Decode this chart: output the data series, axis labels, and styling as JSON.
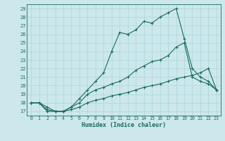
{
  "xlabel": "Humidex (Indice chaleur)",
  "bg_color": "#cce8ec",
  "line_color": "#1a6b5e",
  "grid_color": "#b0d8dc",
  "ylim": [
    16.5,
    29.5
  ],
  "xlim": [
    -0.5,
    23.5
  ],
  "yticks": [
    17,
    18,
    19,
    20,
    21,
    22,
    23,
    24,
    25,
    26,
    27,
    28,
    29
  ],
  "xticks": [
    0,
    1,
    2,
    3,
    4,
    5,
    6,
    7,
    8,
    9,
    10,
    11,
    12,
    13,
    14,
    15,
    16,
    17,
    18,
    19,
    20,
    21,
    22,
    23
  ],
  "line1_x": [
    0,
    1,
    2,
    3,
    4,
    5,
    6,
    7,
    8,
    9,
    10,
    11,
    12,
    13,
    14,
    15,
    16,
    17,
    18,
    19,
    20,
    21,
    22,
    23
  ],
  "line1_y": [
    18.0,
    18.0,
    17.5,
    17.0,
    17.0,
    17.2,
    17.5,
    18.0,
    18.3,
    18.5,
    18.8,
    19.0,
    19.2,
    19.5,
    19.8,
    20.0,
    20.2,
    20.5,
    20.8,
    21.0,
    21.2,
    21.5,
    22.0,
    19.5
  ],
  "line2_x": [
    0,
    1,
    2,
    3,
    4,
    5,
    6,
    7,
    8,
    9,
    10,
    11,
    12,
    13,
    14,
    15,
    16,
    17,
    18,
    19,
    20,
    21,
    22,
    23
  ],
  "line2_y": [
    18.0,
    18.0,
    17.2,
    17.0,
    17.0,
    17.5,
    18.0,
    19.0,
    19.5,
    19.8,
    20.2,
    20.5,
    21.0,
    21.8,
    22.3,
    22.8,
    23.0,
    23.5,
    24.5,
    25.0,
    21.0,
    20.5,
    20.2,
    19.5
  ],
  "line3_x": [
    0,
    1,
    2,
    3,
    4,
    5,
    6,
    7,
    8,
    9,
    10,
    11,
    12,
    13,
    14,
    15,
    16,
    17,
    18,
    19,
    20,
    21,
    22,
    23
  ],
  "line3_y": [
    18.0,
    18.0,
    17.0,
    17.0,
    17.0,
    17.5,
    18.5,
    19.5,
    20.5,
    21.5,
    24.0,
    26.2,
    26.0,
    26.5,
    27.5,
    27.3,
    28.0,
    28.5,
    29.0,
    25.5,
    22.0,
    21.0,
    20.5,
    19.5
  ]
}
